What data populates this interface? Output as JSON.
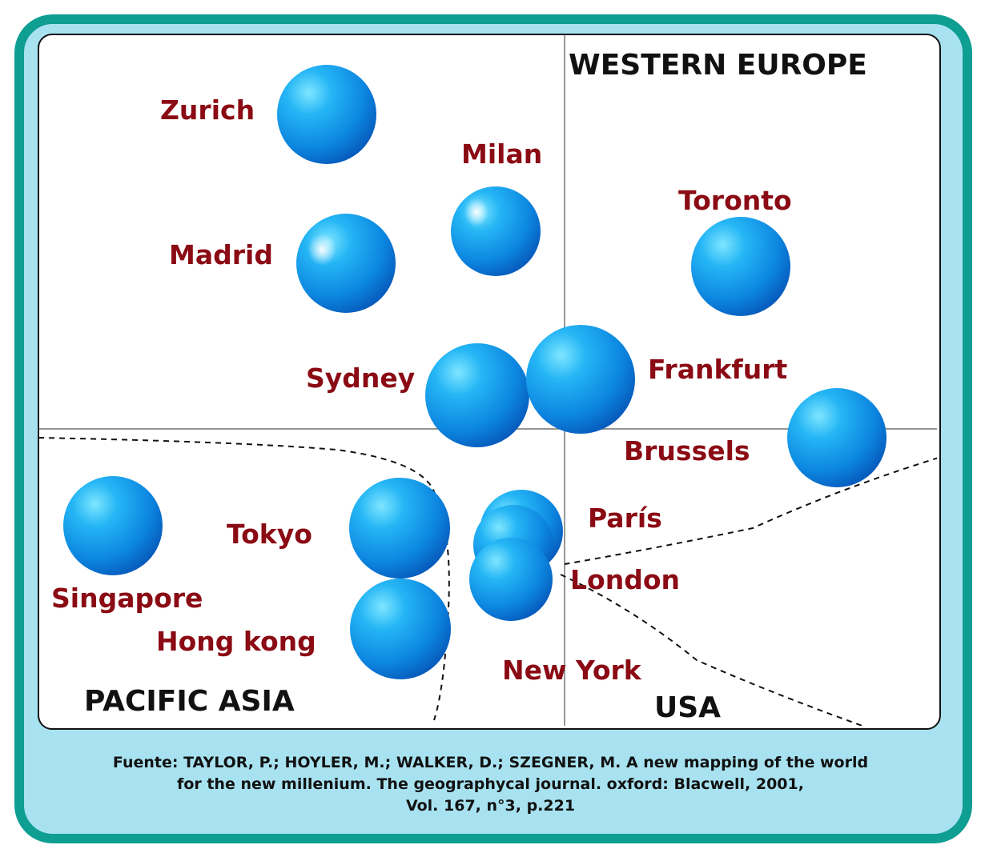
{
  "regions": {
    "western_europe": "WESTERN EUROPE",
    "pacific_asia": "PACIFIC ASIA",
    "usa": "USA"
  },
  "cities": [
    {
      "key": "zurich",
      "label": "Zurich"
    },
    {
      "key": "milan",
      "label": "Milan"
    },
    {
      "key": "toronto",
      "label": "Toronto"
    },
    {
      "key": "madrid",
      "label": "Madrid"
    },
    {
      "key": "sydney",
      "label": "Sydney"
    },
    {
      "key": "frankfurt",
      "label": "Frankfurt"
    },
    {
      "key": "brussels",
      "label": "Brussels"
    },
    {
      "key": "paris",
      "label": "París"
    },
    {
      "key": "tokyo",
      "label": "Tokyo"
    },
    {
      "key": "singapore",
      "label": "Singapore"
    },
    {
      "key": "london",
      "label": "London"
    },
    {
      "key": "hong_kong",
      "label": "Hong kong"
    },
    {
      "key": "new_york",
      "label": "New York"
    }
  ],
  "source": {
    "line1": "Fuente: TAYLOR, P.; HOYLER, M.; WALKER, D.; SZEGNER, M. A new mapping of the world",
    "line2": "for the new millenium. The geographycal journal. oxford: Blacwell, 2001,",
    "line3": "Vol. 167, n°3, p.221"
  },
  "colors": {
    "frame": "#0e9e92",
    "background": "#a8e2f0",
    "city_label": "#8b0b14",
    "sphere": "#1a8fe6"
  }
}
